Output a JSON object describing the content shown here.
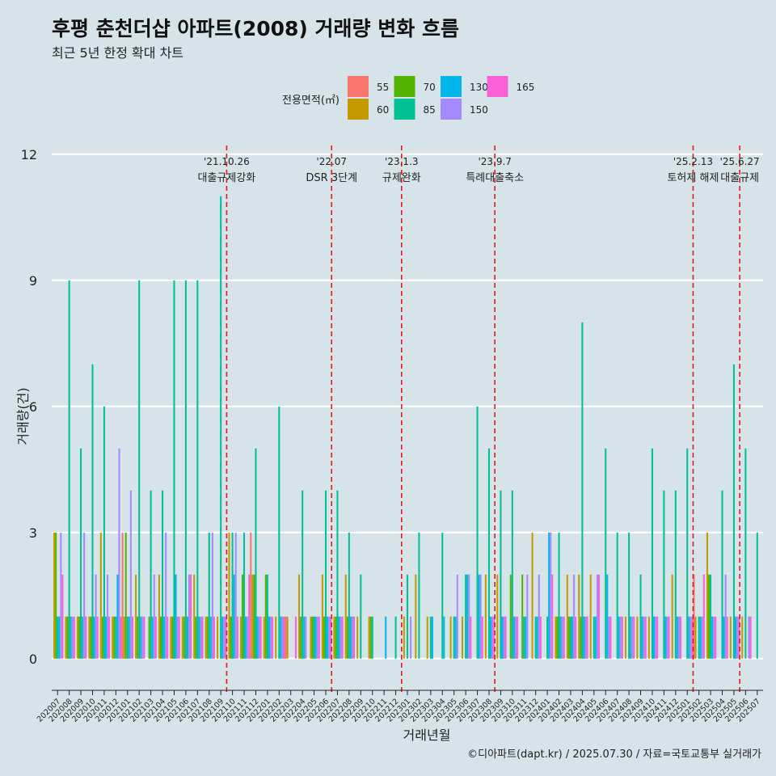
{
  "chart_data": {
    "type": "bar",
    "title": "후평 춘천더샵 아파트(2008) 거래량 변화 흐름",
    "subtitle": "최근 5년 한정 확대 차트",
    "xlabel": "거래년월",
    "ylabel": "거래량(건)",
    "ylim": [
      -0.6,
      12.4
    ],
    "yticks": [
      0,
      3,
      6,
      9,
      12
    ],
    "grid": true,
    "legend": {
      "title": "전용면적(㎡)",
      "position": "top",
      "items": [
        {
          "name": "55",
          "color": "#f8766d"
        },
        {
          "name": "60",
          "color": "#c49a00"
        },
        {
          "name": "70",
          "color": "#53b400"
        },
        {
          "name": "85",
          "color": "#00c094"
        },
        {
          "name": "130",
          "color": "#00b6eb"
        },
        {
          "name": "150",
          "color": "#a58aff"
        },
        {
          "name": "165",
          "color": "#fb61d7"
        }
      ]
    },
    "categories": [
      "202007",
      "202008",
      "202009",
      "202010",
      "202011",
      "202012",
      "202101",
      "202102",
      "202103",
      "202104",
      "202105",
      "202106",
      "202107",
      "202108",
      "202109",
      "202110",
      "202111",
      "202112",
      "202201",
      "202202",
      "202203",
      "202204",
      "202205",
      "202206",
      "202207",
      "202208",
      "202209",
      "202210",
      "202211",
      "202212",
      "202301",
      "202302",
      "202303",
      "202304",
      "202305",
      "202306",
      "202307",
      "202308",
      "202309",
      "202310",
      "202311",
      "202312",
      "202401",
      "202402",
      "202403",
      "202404",
      "202405",
      "202406",
      "202407",
      "202408",
      "202409",
      "202410",
      "202411",
      "202412",
      "202501",
      "202502",
      "202503",
      "202504",
      "202505",
      "202506",
      "202507"
    ],
    "series": [
      {
        "name": "55",
        "values": [
          0,
          0,
          0,
          0,
          0,
          0,
          3,
          0,
          0,
          0,
          0,
          0,
          0,
          0,
          0,
          0,
          0,
          3,
          0,
          0,
          1,
          0,
          0,
          0,
          0,
          0,
          0,
          0,
          0,
          0,
          0,
          0,
          0,
          0,
          0,
          0,
          0,
          0,
          0,
          0,
          0,
          0,
          0,
          0,
          0,
          0,
          0,
          0,
          0,
          0,
          0,
          0,
          0,
          0,
          0,
          2,
          0,
          0,
          0,
          0,
          0
        ]
      },
      {
        "name": "60",
        "values": [
          3,
          1,
          1,
          1,
          3,
          1,
          1,
          2,
          0,
          2,
          1,
          1,
          2,
          1,
          1,
          3,
          1,
          2,
          1,
          1,
          1,
          2,
          1,
          2,
          1,
          2,
          1,
          1,
          0,
          0,
          1,
          2,
          1,
          0,
          1,
          1,
          0,
          2,
          2,
          0,
          0,
          3,
          0,
          1,
          2,
          2,
          2,
          0,
          0,
          1,
          1,
          1,
          0,
          2,
          0,
          1,
          3,
          0,
          1,
          1,
          0
        ]
      },
      {
        "name": "70",
        "values": [
          3,
          1,
          1,
          1,
          1,
          1,
          3,
          1,
          1,
          1,
          1,
          1,
          1,
          1,
          0,
          1,
          2,
          2,
          2,
          0,
          0,
          1,
          1,
          1,
          1,
          1,
          0,
          1,
          0,
          0,
          0,
          0,
          0,
          0,
          0,
          0,
          0,
          0,
          0,
          2,
          2,
          0,
          0,
          1,
          1,
          1,
          0,
          0,
          0,
          0,
          0,
          0,
          0,
          0,
          0,
          0,
          2,
          0,
          0,
          0,
          0
        ]
      },
      {
        "name": "85",
        "values": [
          1,
          9,
          5,
          7,
          6,
          1,
          1,
          9,
          4,
          4,
          9,
          9,
          9,
          3,
          11,
          3,
          3,
          5,
          2,
          6,
          0,
          4,
          1,
          4,
          4,
          3,
          2,
          1,
          0,
          1,
          2,
          3,
          1,
          3,
          1,
          2,
          6,
          5,
          4,
          4,
          1,
          1,
          1,
          3,
          1,
          8,
          1,
          5,
          3,
          3,
          2,
          5,
          4,
          4,
          5,
          1,
          2,
          4,
          7,
          5,
          3
        ]
      },
      {
        "name": "130",
        "values": [
          1,
          1,
          1,
          1,
          1,
          2,
          1,
          1,
          1,
          1,
          2,
          1,
          1,
          1,
          1,
          2,
          1,
          1,
          1,
          1,
          0,
          1,
          1,
          1,
          1,
          1,
          0,
          0,
          1,
          0,
          0,
          0,
          1,
          1,
          1,
          2,
          2,
          1,
          1,
          1,
          1,
          1,
          3,
          1,
          1,
          1,
          1,
          2,
          1,
          1,
          1,
          1,
          1,
          1,
          1,
          1,
          1,
          1,
          1,
          0,
          0
        ]
      },
      {
        "name": "150",
        "values": [
          3,
          1,
          3,
          2,
          2,
          5,
          4,
          1,
          2,
          3,
          1,
          2,
          1,
          3,
          1,
          3,
          1,
          1,
          1,
          1,
          0,
          1,
          1,
          1,
          1,
          1,
          0,
          0,
          0,
          0,
          1,
          0,
          0,
          0,
          2,
          2,
          2,
          1,
          1,
          1,
          2,
          2,
          3,
          1,
          2,
          1,
          2,
          1,
          1,
          1,
          1,
          1,
          1,
          1,
          1,
          1,
          1,
          2,
          1,
          1,
          0
        ]
      },
      {
        "name": "165",
        "values": [
          2,
          1,
          1,
          1,
          1,
          1,
          1,
          1,
          1,
          1,
          1,
          2,
          1,
          1,
          1,
          1,
          2,
          1,
          1,
          1,
          1,
          0,
          1,
          1,
          1,
          1,
          0,
          0,
          0,
          0,
          0,
          0,
          0,
          0,
          0,
          1,
          1,
          1,
          1,
          1,
          0,
          1,
          2,
          1,
          1,
          1,
          2,
          1,
          1,
          1,
          1,
          1,
          1,
          1,
          1,
          2,
          1,
          1,
          1,
          1,
          0
        ]
      }
    ],
    "events": [
      {
        "after_index": 14,
        "date": "'21.10.26",
        "label": "대출규제강화"
      },
      {
        "after_index": 23,
        "date": "'22.07",
        "label": "DSR 3단계"
      },
      {
        "after_index": 29,
        "date": "'23.1.3",
        "label": "규제완화"
      },
      {
        "after_index": 37,
        "date": "'23.9.7",
        "label": "특례대출축소"
      },
      {
        "after_index": 54,
        "date": "'25.2.13",
        "label": "토허제 해제"
      },
      {
        "after_index": 58,
        "date": "'25.6.27",
        "label": "대출규제"
      }
    ]
  },
  "caption": "©디아파트(dapt.kr) / 2025.07.30 / 자료=국토교통부 실거래가",
  "colors": {
    "background": "#d6e4ea",
    "gridline": "#ffffff",
    "event_line": "#e41a1c"
  }
}
